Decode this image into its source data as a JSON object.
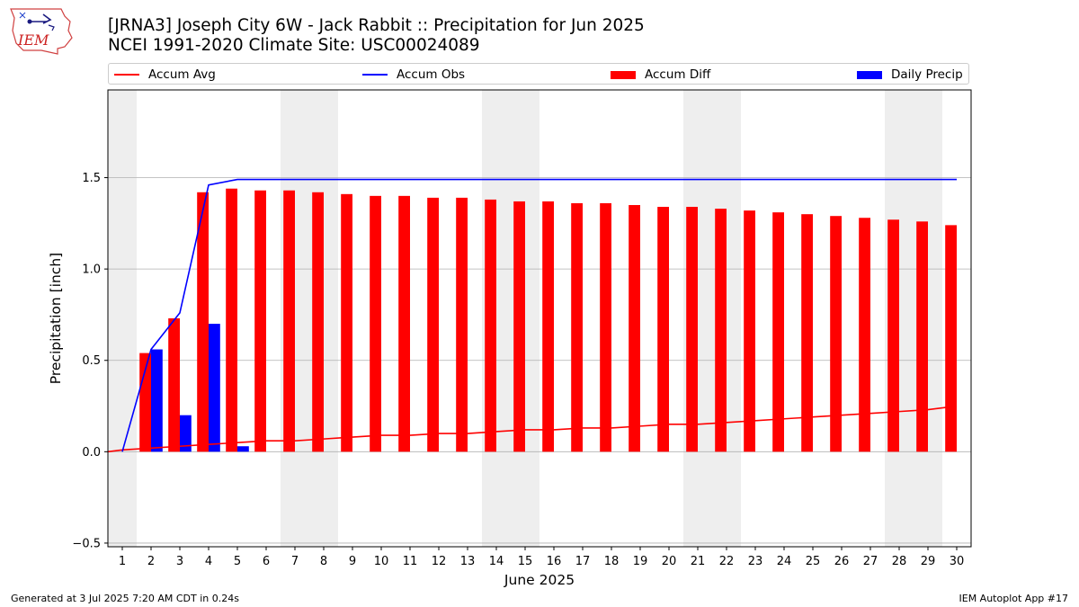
{
  "header": {
    "title_line1": "[JRNA3] Joseph City 6W - Jack Rabbit :: Precipitation for Jun 2025",
    "title_line2": "NCEI 1991-2020 Climate Site: USC00024089",
    "logo_text": "IEM"
  },
  "footer": {
    "left": "Generated at 3 Jul 2025 7:20 AM CDT in 0.24s",
    "right": "IEM Autoplot App #17"
  },
  "colors": {
    "avg": "#ff0000",
    "obs": "#0000ff",
    "diff": "#ff0000",
    "daily": "#0000ff",
    "weekend": "#eeeeee",
    "grid": "#b0b0b0"
  },
  "chart_data": {
    "type": "bar",
    "xlabel": "June 2025",
    "ylabel": "Precipitation [inch]",
    "xlim": [
      0.5,
      30.5
    ],
    "ylim": [
      -0.52,
      1.98
    ],
    "yticks": [
      -0.5,
      0.0,
      0.5,
      1.0,
      1.5
    ],
    "ytick_labels": [
      "−0.5",
      "0.0",
      "0.5",
      "1.0",
      "1.5"
    ],
    "days": [
      1,
      2,
      3,
      4,
      5,
      6,
      7,
      8,
      9,
      10,
      11,
      12,
      13,
      14,
      15,
      16,
      17,
      18,
      19,
      20,
      21,
      22,
      23,
      24,
      25,
      26,
      27,
      28,
      29,
      30
    ],
    "xtick_labels": [
      "1",
      "2",
      "3",
      "4",
      "5",
      "6",
      "7",
      "8",
      "9",
      "10",
      "11",
      "12",
      "13",
      "14",
      "15",
      "16",
      "17",
      "18",
      "19",
      "20",
      "21",
      "22",
      "23",
      "24",
      "25",
      "26",
      "27",
      "28",
      "29",
      "30"
    ],
    "grid": "horizontal",
    "legend_position": "top, outside plot",
    "weekend_shading": [
      [
        0.5,
        1.5
      ],
      [
        6.5,
        8.5
      ],
      [
        13.5,
        15.5
      ],
      [
        20.5,
        22.5
      ],
      [
        27.5,
        29.5
      ]
    ],
    "series": [
      {
        "name": "Accum Avg",
        "kind": "line",
        "x": [
          0.5,
          1,
          2,
          3,
          4,
          5,
          6,
          7,
          8,
          9,
          10,
          11,
          12,
          13,
          14,
          15,
          16,
          17,
          18,
          19,
          20,
          21,
          22,
          23,
          24,
          25,
          26,
          27,
          28,
          29,
          30
        ],
        "values": [
          0.0,
          0.01,
          0.02,
          0.03,
          0.04,
          0.05,
          0.06,
          0.06,
          0.07,
          0.08,
          0.09,
          0.09,
          0.1,
          0.1,
          0.11,
          0.12,
          0.12,
          0.13,
          0.13,
          0.14,
          0.15,
          0.15,
          0.16,
          0.17,
          0.18,
          0.19,
          0.2,
          0.21,
          0.22,
          0.23,
          0.25
        ]
      },
      {
        "name": "Accum Obs",
        "kind": "line",
        "x": [
          1,
          2,
          3,
          4,
          5,
          6,
          7,
          8,
          9,
          10,
          11,
          12,
          13,
          14,
          15,
          16,
          17,
          18,
          19,
          20,
          21,
          22,
          23,
          24,
          25,
          26,
          27,
          28,
          29,
          30
        ],
        "values": [
          0.0,
          0.56,
          0.76,
          1.46,
          1.49,
          1.49,
          1.49,
          1.49,
          1.49,
          1.49,
          1.49,
          1.49,
          1.49,
          1.49,
          1.49,
          1.49,
          1.49,
          1.49,
          1.49,
          1.49,
          1.49,
          1.49,
          1.49,
          1.49,
          1.49,
          1.49,
          1.49,
          1.49,
          1.49,
          1.49
        ]
      },
      {
        "name": "Accum Diff",
        "kind": "bar",
        "x": [
          2,
          3,
          4,
          5,
          6,
          7,
          8,
          9,
          10,
          11,
          12,
          13,
          14,
          15,
          16,
          17,
          18,
          19,
          20,
          21,
          22,
          23,
          24,
          25,
          26,
          27,
          28,
          29,
          30
        ],
        "values": [
          0.54,
          0.73,
          1.42,
          1.44,
          1.43,
          1.43,
          1.42,
          1.41,
          1.4,
          1.4,
          1.39,
          1.39,
          1.38,
          1.37,
          1.37,
          1.36,
          1.36,
          1.35,
          1.34,
          1.34,
          1.33,
          1.32,
          1.31,
          1.3,
          1.29,
          1.28,
          1.27,
          1.26,
          1.24
        ]
      },
      {
        "name": "Daily Precip",
        "kind": "bar",
        "x": [
          2,
          3,
          4,
          5
        ],
        "values": [
          0.56,
          0.2,
          0.7,
          0.03
        ]
      }
    ]
  }
}
